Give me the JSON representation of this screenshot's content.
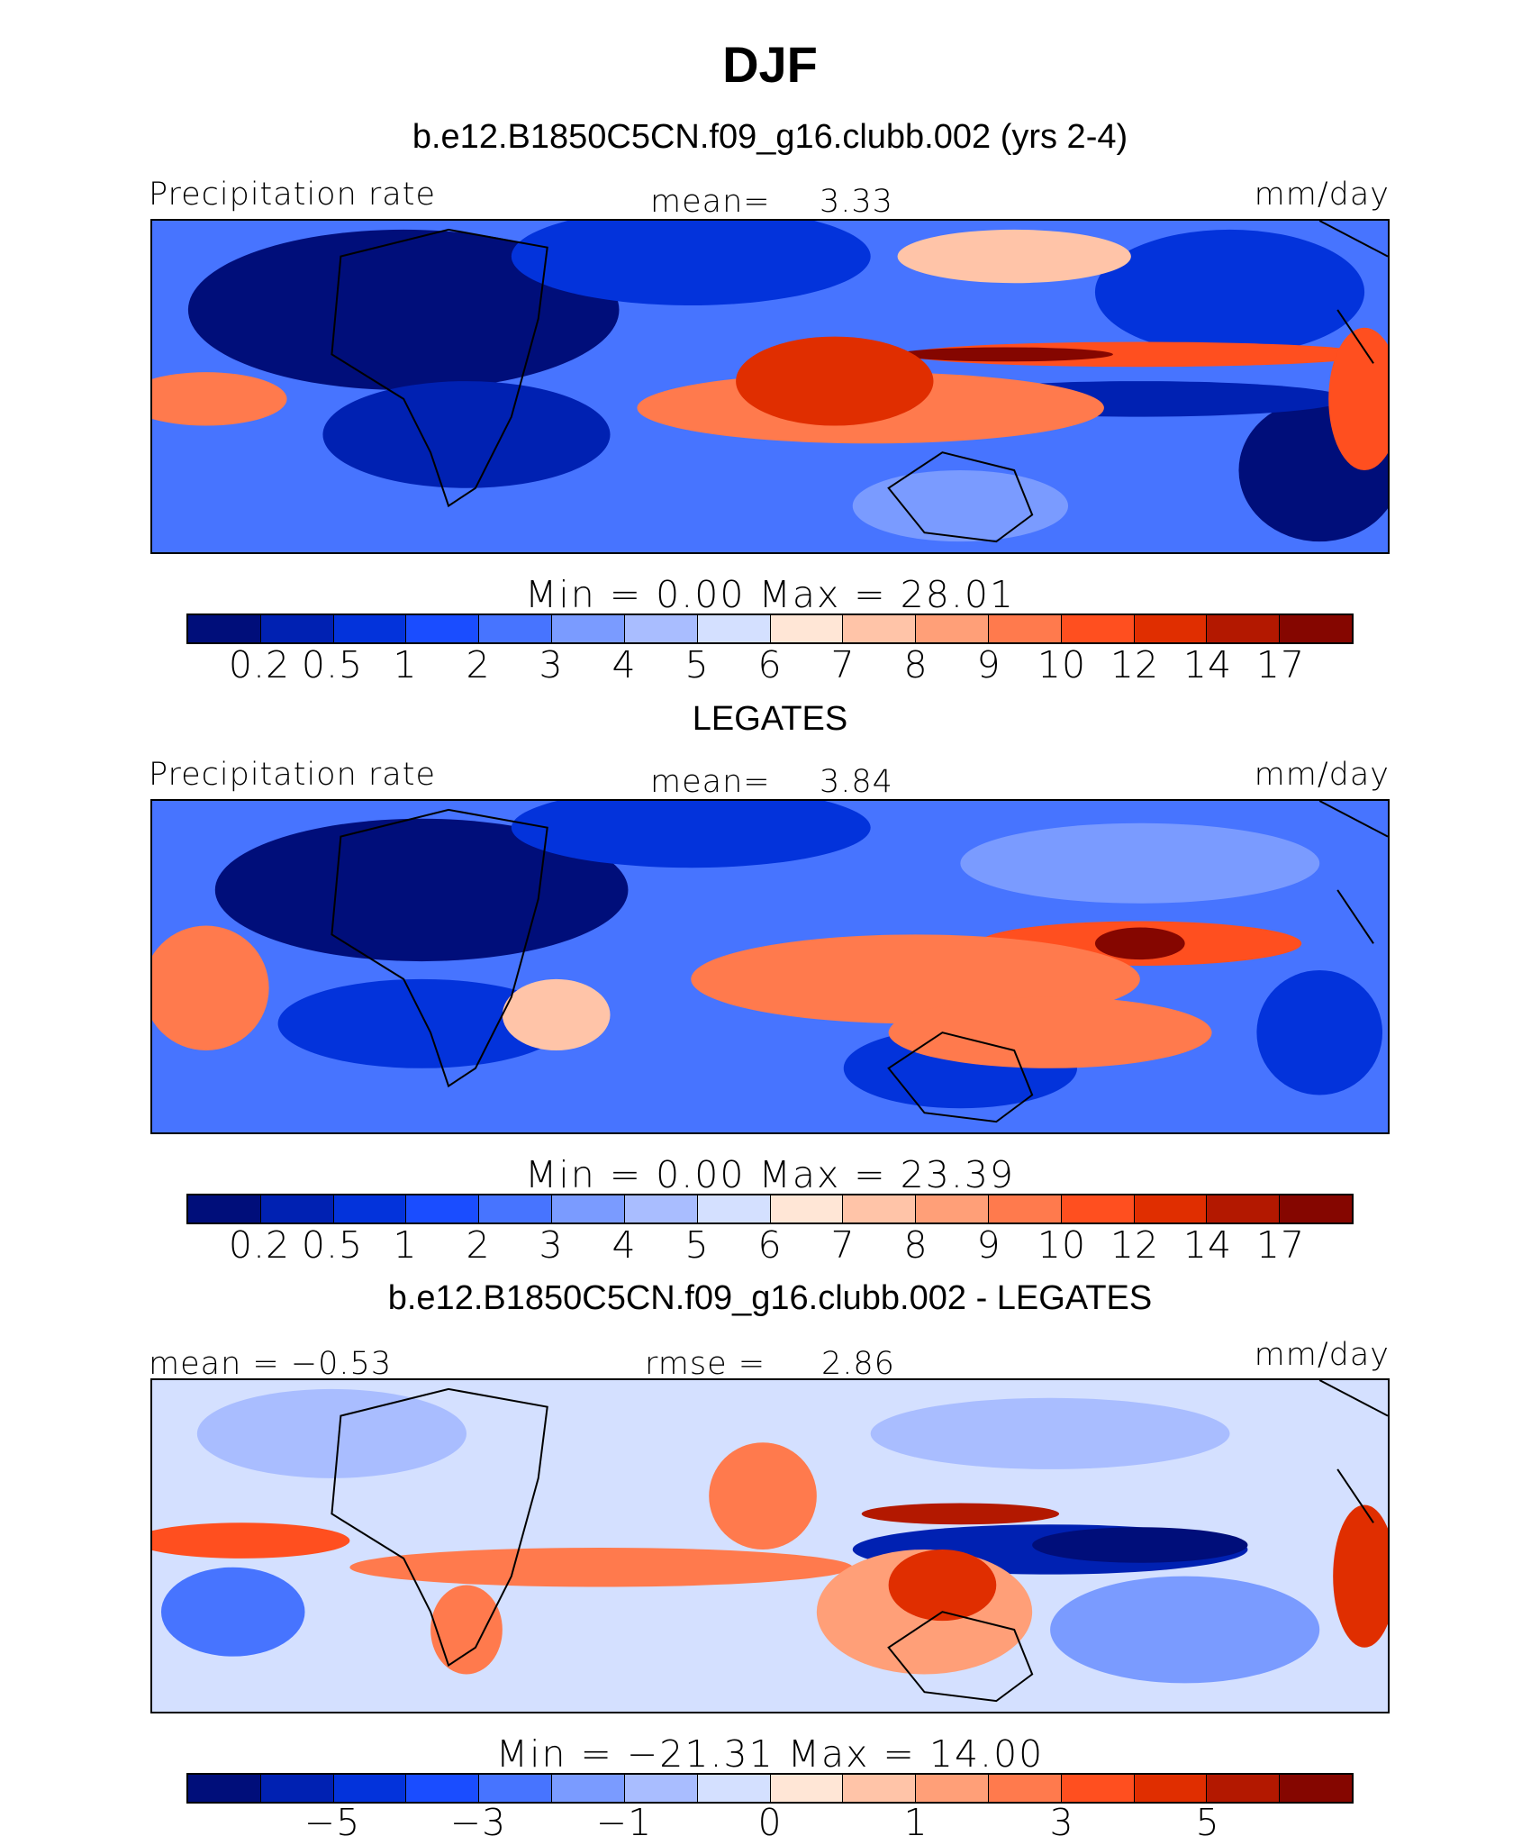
{
  "title": "DJF",
  "panels": [
    {
      "title": "b.e12.B1850C5CN.f09_g16.clubb.002 (yrs 2-4)",
      "left": "Precipitation  rate",
      "center_label": "mean=",
      "center_value": "3.33",
      "units": "mm/day",
      "minmax": "Min  =     0.00  Max  =   28.01",
      "map": "model"
    },
    {
      "title": "LEGATES",
      "left": "Precipitation  rate",
      "center_label": "mean=",
      "center_value": "3.84",
      "units": "mm/day",
      "minmax": "Min  =     0.00  Max  =   23.39",
      "map": "obs"
    },
    {
      "title": "b.e12.B1850C5CN.f09_g16.clubb.002 - LEGATES",
      "left": "mean  =   −0.53",
      "center_label": "rmse  =",
      "center_value": "2.86",
      "units": "mm/day",
      "minmax": "Min  =  −21.31  Max  =   14.00",
      "map": "diff"
    }
  ],
  "colorbar_colors": [
    "#000e7a",
    "#0021b2",
    "#0333db",
    "#1a4dff",
    "#4774ff",
    "#7a9bff",
    "#a9bdff",
    "#d4e0ff",
    "#ffe6d6",
    "#ffc4a8",
    "#ff9f78",
    "#ff7a4d",
    "#ff4f1f",
    "#e02e00",
    "#b31800",
    "#850600"
  ],
  "colorbar_ticks_precip": [
    "0.2",
    "0.5",
    "1",
    "2",
    "3",
    "4",
    "5",
    "6",
    "7",
    "8",
    "9",
    "10",
    "12",
    "14",
    "17"
  ],
  "colorbar_ticks_diff": [
    "−5",
    "−3",
    "−1",
    "0",
    "1",
    "3",
    "5"
  ]
}
